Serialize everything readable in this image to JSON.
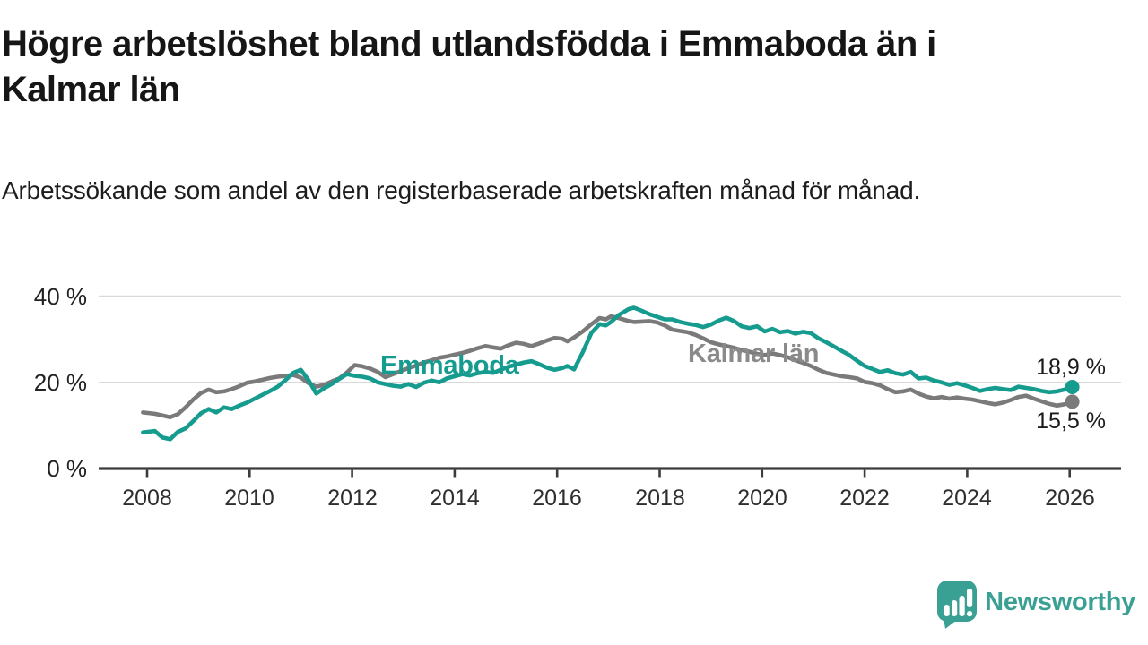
{
  "header": {
    "title_line1": "Högre arbetslöshet bland utlandsfödda i Emmaboda än i",
    "title_line2": "Kalmar län",
    "subtitle": "Arbetssökande som andel av den registerbaserade arbetskraften månad för månad."
  },
  "chart_data": {
    "type": "line",
    "title": "Högre arbetslöshet bland utlandsfödda i Emmaboda än i Kalmar län",
    "subtitle": "Arbetssökande som andel av den registerbaserade arbetskraften månad för månad.",
    "unit": "%",
    "grid": "horizontal-gridlines-at-20-and-40",
    "legend_position": "inline-labels-on-lines",
    "xlim": [
      2007.0,
      2027.0
    ],
    "ylim": [
      0,
      42
    ],
    "x_ticks": [
      2008,
      2010,
      2012,
      2014,
      2016,
      2018,
      2020,
      2022,
      2024,
      2026
    ],
    "y_ticks": [
      {
        "value": 40,
        "label": "40 %"
      },
      {
        "value": 20,
        "label": "20 %"
      },
      {
        "value": 0,
        "label": "0 %"
      }
    ],
    "x": [
      2007.92,
      2008.15,
      2008.3,
      2008.45,
      2008.6,
      2008.75,
      2008.9,
      2009.05,
      2009.2,
      2009.35,
      2009.5,
      2009.65,
      2009.8,
      2009.95,
      2010.1,
      2010.25,
      2010.4,
      2010.55,
      2010.7,
      2010.85,
      2011.0,
      2011.15,
      2011.3,
      2011.45,
      2011.6,
      2011.75,
      2011.9,
      2012.05,
      2012.2,
      2012.35,
      2012.5,
      2012.65,
      2012.8,
      2012.95,
      2013.1,
      2013.25,
      2013.4,
      2013.55,
      2013.7,
      2013.85,
      2014.0,
      2014.15,
      2014.3,
      2014.45,
      2014.6,
      2014.75,
      2014.9,
      2015.05,
      2015.2,
      2015.35,
      2015.5,
      2015.65,
      2015.8,
      2015.95,
      2016.1,
      2016.2,
      2016.33,
      2016.5,
      2016.67,
      2016.83,
      2016.95,
      2017.05,
      2017.2,
      2017.4,
      2017.5,
      2017.65,
      2017.8,
      2017.95,
      2018.1,
      2018.25,
      2018.4,
      2018.55,
      2018.7,
      2018.85,
      2019.0,
      2019.15,
      2019.3,
      2019.45,
      2019.6,
      2019.75,
      2019.9,
      2020.05,
      2020.2,
      2020.35,
      2020.5,
      2020.65,
      2020.8,
      2020.95,
      2021.1,
      2021.25,
      2021.4,
      2021.55,
      2021.7,
      2021.85,
      2022.0,
      2022.15,
      2022.3,
      2022.45,
      2022.6,
      2022.75,
      2022.9,
      2023.05,
      2023.2,
      2023.35,
      2023.5,
      2023.65,
      2023.8,
      2023.95,
      2024.1,
      2024.25,
      2024.4,
      2024.55,
      2024.7,
      2024.85,
      2025.0,
      2025.15,
      2025.3,
      2025.45,
      2025.6,
      2025.75,
      2025.9,
      2026.05
    ],
    "series": [
      {
        "name": "Emmaboda",
        "color": "#169B8F",
        "end_label": "18,9 %",
        "end_value": 18.9,
        "values": [
          8.4,
          8.7,
          7.2,
          6.8,
          8.5,
          9.3,
          11.0,
          12.8,
          13.8,
          13.0,
          14.2,
          13.8,
          14.6,
          15.3,
          16.2,
          17.1,
          18.0,
          19.0,
          20.5,
          22.2,
          22.9,
          20.5,
          17.4,
          18.6,
          19.6,
          20.8,
          21.9,
          21.5,
          21.3,
          20.9,
          20.0,
          19.6,
          19.2,
          19.0,
          19.6,
          18.9,
          19.9,
          20.4,
          20.0,
          20.9,
          21.4,
          21.9,
          21.6,
          22.1,
          22.4,
          22.2,
          22.9,
          23.6,
          24.1,
          24.6,
          24.9,
          24.2,
          23.4,
          22.9,
          23.3,
          23.8,
          23.0,
          27.0,
          31.5,
          33.5,
          33.2,
          34.0,
          35.6,
          37.0,
          37.3,
          36.6,
          35.8,
          35.2,
          34.6,
          34.6,
          34.0,
          33.6,
          33.3,
          32.8,
          33.4,
          34.3,
          35.0,
          34.2,
          33.0,
          32.6,
          33.0,
          31.8,
          32.4,
          31.6,
          31.9,
          31.3,
          31.7,
          31.4,
          30.2,
          29.3,
          28.3,
          27.3,
          26.3,
          25.0,
          23.8,
          23.1,
          22.4,
          22.8,
          22.1,
          21.8,
          22.4,
          20.9,
          21.1,
          20.4,
          20.0,
          19.4,
          19.8,
          19.3,
          18.7,
          18.0,
          18.4,
          18.7,
          18.4,
          18.2,
          19.0,
          18.7,
          18.4,
          18.0,
          17.7,
          17.9,
          18.3,
          18.9
        ]
      },
      {
        "name": "Kalmar län",
        "color": "#7A7A7A",
        "label_color": "#8A8A8A",
        "end_label": "15,5 %",
        "end_value": 15.5,
        "values": [
          13.0,
          12.7,
          12.3,
          11.9,
          12.6,
          14.2,
          16.0,
          17.5,
          18.3,
          17.7,
          17.9,
          18.4,
          19.1,
          19.9,
          20.2,
          20.6,
          21.0,
          21.3,
          21.5,
          21.7,
          21.1,
          19.8,
          19.0,
          19.4,
          20.2,
          20.9,
          22.3,
          24.0,
          23.7,
          23.2,
          22.4,
          21.2,
          21.9,
          22.6,
          23.3,
          23.9,
          24.6,
          25.1,
          25.7,
          26.0,
          26.4,
          26.8,
          27.3,
          27.9,
          28.4,
          28.1,
          27.8,
          28.6,
          29.2,
          28.9,
          28.4,
          29.0,
          29.7,
          30.3,
          30.1,
          29.5,
          30.4,
          31.8,
          33.5,
          34.9,
          34.6,
          35.3,
          34.9,
          34.2,
          34.0,
          34.1,
          34.2,
          33.9,
          33.2,
          32.2,
          31.9,
          31.6,
          31.0,
          30.2,
          29.3,
          28.8,
          28.4,
          28.0,
          27.5,
          27.1,
          26.6,
          26.3,
          26.7,
          26.3,
          25.8,
          25.1,
          24.5,
          23.8,
          22.9,
          22.2,
          21.8,
          21.4,
          21.2,
          20.9,
          20.1,
          19.8,
          19.3,
          18.4,
          17.7,
          17.9,
          18.3,
          17.4,
          16.7,
          16.3,
          16.6,
          16.2,
          16.5,
          16.2,
          16.0,
          15.6,
          15.2,
          14.9,
          15.3,
          15.9,
          16.6,
          16.9,
          16.2,
          15.6,
          15.0,
          14.6,
          14.9,
          15.5
        ]
      }
    ]
  },
  "footer": {
    "brand": "Newsworthy"
  },
  "colors": {
    "emmaboda_line": "#169B8F",
    "kalmar_line": "#7A7A7A",
    "kalmar_label": "#8A8A8A",
    "grid": "#D9D9D9",
    "axis": "#3C3C3C",
    "title_text": "#161616",
    "brand_teal": "#3AA093",
    "background": "#FFFFFF"
  }
}
